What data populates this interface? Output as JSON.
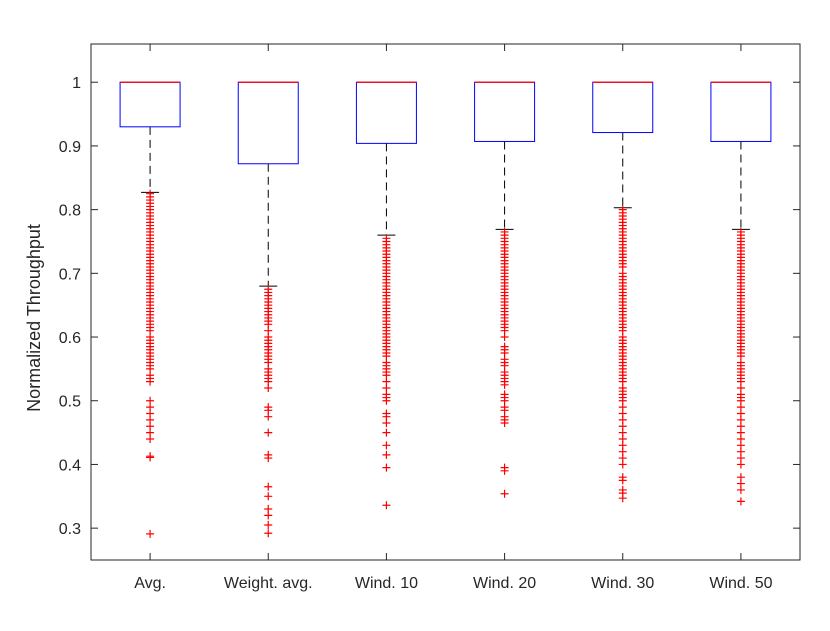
{
  "chart_data": {
    "type": "boxplot",
    "title": "",
    "xlabel": "",
    "ylabel": "Normalized Throughput",
    "ylim": [
      0.25,
      1.06
    ],
    "yticks": [
      0.3,
      0.4,
      0.5,
      0.6,
      0.7,
      0.8,
      0.9,
      1
    ],
    "ytick_labels": [
      "0.3",
      "0.4",
      "0.5",
      "0.6",
      "0.7",
      "0.8",
      "0.9",
      "1"
    ],
    "grid": false,
    "colors": {
      "box": "#0000ff",
      "median": "#ff0000",
      "whisker": "#000000",
      "outlier": "#ff0000",
      "axis": "#262626"
    },
    "categories": [
      "Avg.",
      "Weight. avg.",
      "Wind. 10",
      "Wind. 20",
      "Wind. 30",
      "Wind. 50"
    ],
    "boxes": [
      {
        "name": "Avg.",
        "q1": 0.93,
        "median": 1.0,
        "q3": 1.0,
        "whisker_low": 0.827,
        "whisker_high": 1.0,
        "outliers": [
          0.825,
          0.82,
          0.815,
          0.81,
          0.805,
          0.8,
          0.795,
          0.79,
          0.785,
          0.78,
          0.775,
          0.77,
          0.765,
          0.76,
          0.755,
          0.75,
          0.745,
          0.74,
          0.735,
          0.73,
          0.725,
          0.72,
          0.715,
          0.71,
          0.705,
          0.7,
          0.695,
          0.69,
          0.685,
          0.68,
          0.675,
          0.67,
          0.665,
          0.66,
          0.655,
          0.65,
          0.645,
          0.64,
          0.635,
          0.63,
          0.625,
          0.62,
          0.615,
          0.61,
          0.6,
          0.595,
          0.59,
          0.585,
          0.58,
          0.575,
          0.57,
          0.565,
          0.56,
          0.555,
          0.55,
          0.54,
          0.535,
          0.53,
          0.5,
          0.49,
          0.48,
          0.47,
          0.46,
          0.45,
          0.44,
          0.413,
          0.411,
          0.291
        ]
      },
      {
        "name": "Weight. avg.",
        "q1": 0.872,
        "median": 1.0,
        "q3": 1.0,
        "whisker_low": 0.68,
        "whisker_high": 1.0,
        "outliers": [
          0.675,
          0.67,
          0.665,
          0.66,
          0.655,
          0.65,
          0.645,
          0.64,
          0.635,
          0.63,
          0.625,
          0.62,
          0.61,
          0.6,
          0.595,
          0.59,
          0.585,
          0.58,
          0.575,
          0.57,
          0.565,
          0.56,
          0.55,
          0.545,
          0.54,
          0.535,
          0.53,
          0.52,
          0.49,
          0.485,
          0.475,
          0.45,
          0.415,
          0.41,
          0.365,
          0.35,
          0.33,
          0.32,
          0.305,
          0.292
        ]
      },
      {
        "name": "Wind. 10",
        "q1": 0.904,
        "median": 1.0,
        "q3": 1.0,
        "whisker_low": 0.76,
        "whisker_high": 1.0,
        "outliers": [
          0.755,
          0.75,
          0.745,
          0.74,
          0.735,
          0.73,
          0.725,
          0.72,
          0.715,
          0.71,
          0.705,
          0.7,
          0.695,
          0.69,
          0.685,
          0.68,
          0.675,
          0.67,
          0.665,
          0.66,
          0.655,
          0.65,
          0.645,
          0.64,
          0.635,
          0.63,
          0.625,
          0.62,
          0.615,
          0.61,
          0.605,
          0.6,
          0.595,
          0.59,
          0.585,
          0.58,
          0.575,
          0.57,
          0.56,
          0.555,
          0.55,
          0.545,
          0.54,
          0.53,
          0.52,
          0.51,
          0.505,
          0.5,
          0.48,
          0.475,
          0.465,
          0.45,
          0.43,
          0.415,
          0.395,
          0.336
        ]
      },
      {
        "name": "Wind. 20",
        "q1": 0.907,
        "median": 1.0,
        "q3": 1.0,
        "whisker_low": 0.769,
        "whisker_high": 1.0,
        "outliers": [
          0.765,
          0.76,
          0.755,
          0.75,
          0.745,
          0.74,
          0.735,
          0.73,
          0.725,
          0.72,
          0.715,
          0.71,
          0.705,
          0.7,
          0.695,
          0.69,
          0.685,
          0.68,
          0.675,
          0.67,
          0.665,
          0.66,
          0.655,
          0.65,
          0.645,
          0.64,
          0.635,
          0.63,
          0.625,
          0.62,
          0.615,
          0.61,
          0.6,
          0.585,
          0.58,
          0.575,
          0.565,
          0.56,
          0.555,
          0.545,
          0.54,
          0.535,
          0.53,
          0.525,
          0.51,
          0.505,
          0.5,
          0.49,
          0.485,
          0.475,
          0.47,
          0.465,
          0.395,
          0.39,
          0.354
        ]
      },
      {
        "name": "Wind. 30",
        "q1": 0.921,
        "median": 1.0,
        "q3": 1.0,
        "whisker_low": 0.803,
        "whisker_high": 1.0,
        "outliers": [
          0.8,
          0.795,
          0.79,
          0.785,
          0.78,
          0.775,
          0.77,
          0.765,
          0.76,
          0.755,
          0.75,
          0.745,
          0.74,
          0.735,
          0.73,
          0.725,
          0.72,
          0.715,
          0.71,
          0.7,
          0.695,
          0.69,
          0.685,
          0.68,
          0.675,
          0.67,
          0.665,
          0.66,
          0.655,
          0.65,
          0.645,
          0.64,
          0.635,
          0.63,
          0.625,
          0.62,
          0.615,
          0.61,
          0.6,
          0.595,
          0.59,
          0.585,
          0.58,
          0.575,
          0.57,
          0.565,
          0.56,
          0.555,
          0.55,
          0.545,
          0.54,
          0.535,
          0.53,
          0.52,
          0.515,
          0.51,
          0.505,
          0.5,
          0.49,
          0.48,
          0.47,
          0.46,
          0.45,
          0.44,
          0.43,
          0.42,
          0.41,
          0.4,
          0.38,
          0.375,
          0.36,
          0.355,
          0.347
        ]
      },
      {
        "name": "Wind. 50",
        "q1": 0.907,
        "median": 1.0,
        "q3": 1.0,
        "whisker_low": 0.769,
        "whisker_high": 1.0,
        "outliers": [
          0.765,
          0.76,
          0.755,
          0.75,
          0.745,
          0.74,
          0.735,
          0.73,
          0.725,
          0.72,
          0.715,
          0.71,
          0.705,
          0.7,
          0.695,
          0.69,
          0.685,
          0.68,
          0.675,
          0.67,
          0.665,
          0.66,
          0.655,
          0.65,
          0.645,
          0.64,
          0.635,
          0.63,
          0.625,
          0.62,
          0.615,
          0.61,
          0.605,
          0.6,
          0.595,
          0.59,
          0.585,
          0.58,
          0.575,
          0.57,
          0.56,
          0.555,
          0.55,
          0.545,
          0.54,
          0.535,
          0.53,
          0.52,
          0.51,
          0.505,
          0.5,
          0.49,
          0.48,
          0.47,
          0.46,
          0.45,
          0.44,
          0.43,
          0.42,
          0.41,
          0.4,
          0.38,
          0.37,
          0.36,
          0.342
        ]
      }
    ]
  }
}
